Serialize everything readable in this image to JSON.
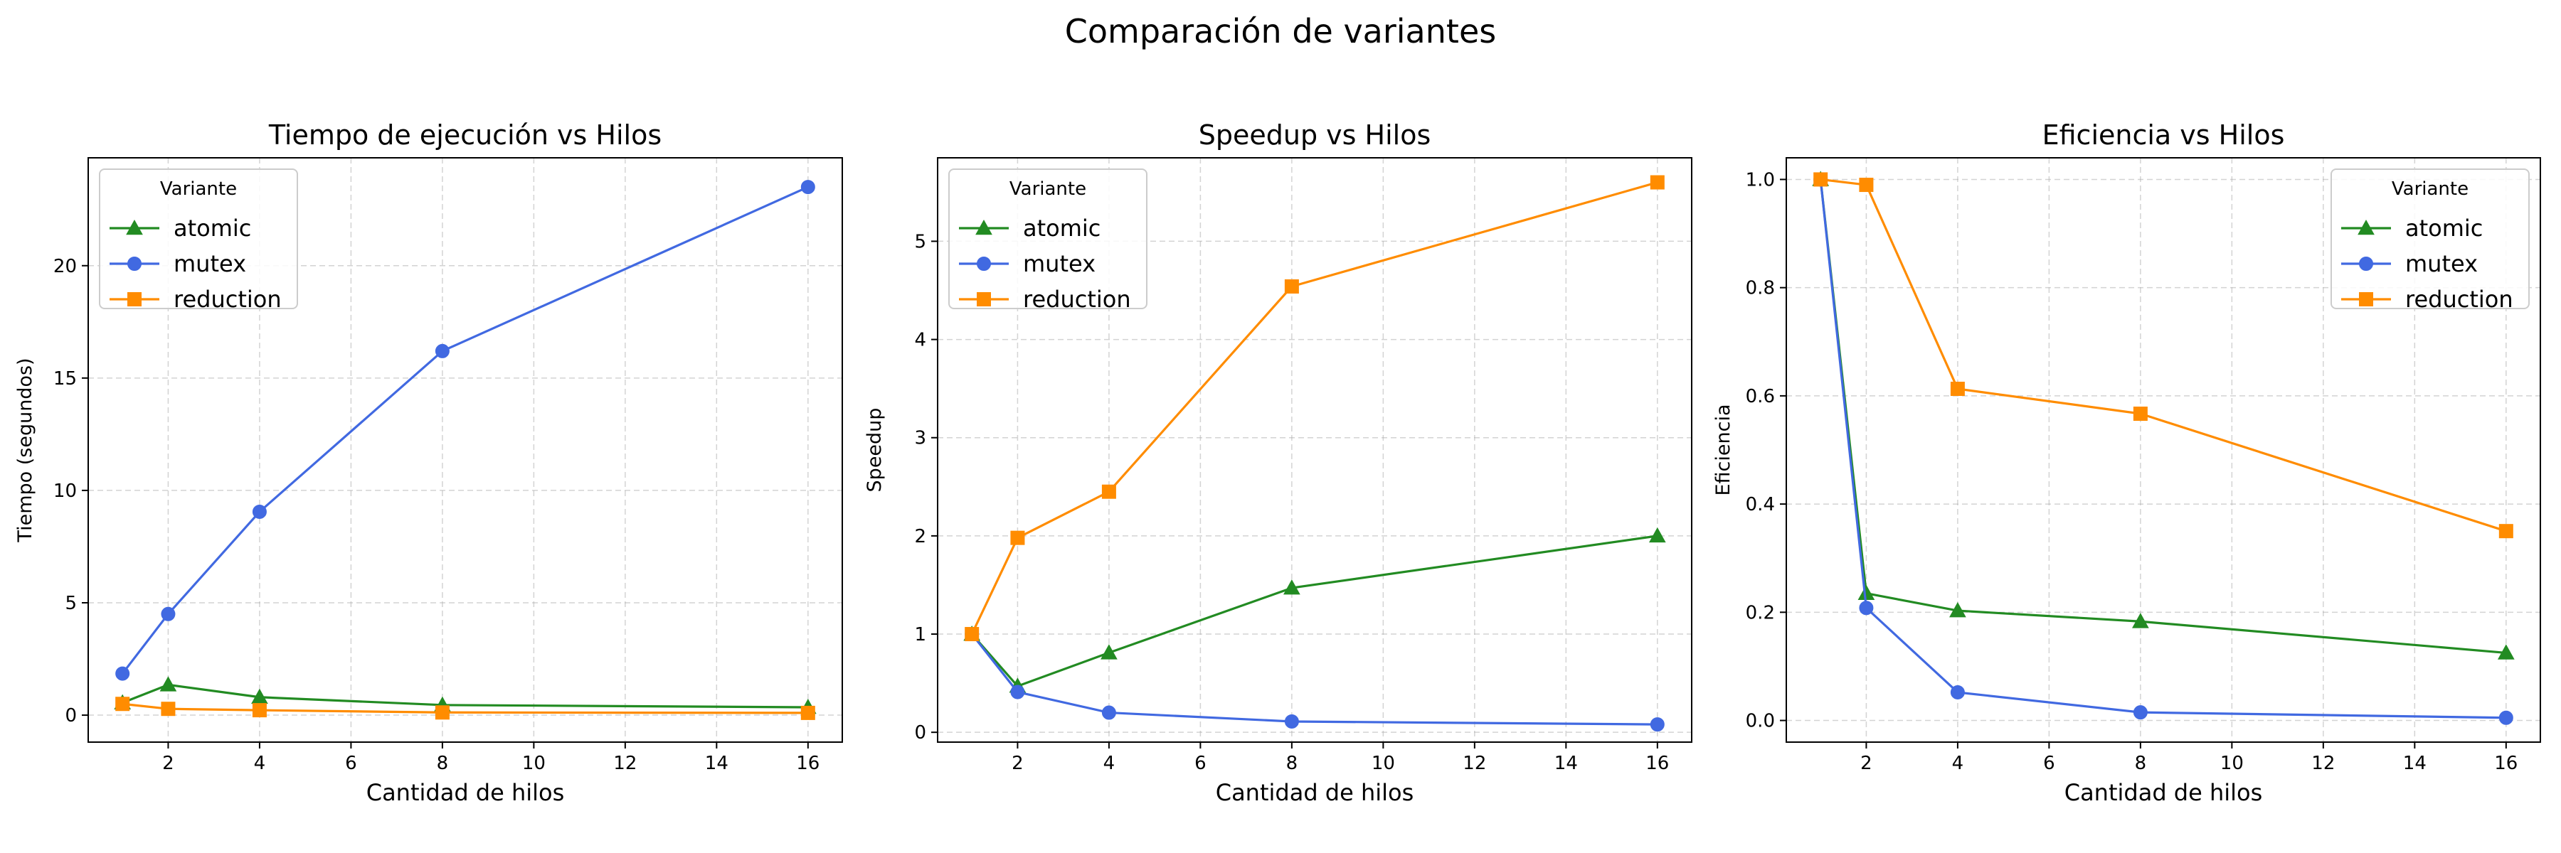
{
  "suptitle": "Comparación de variantes",
  "colors": {
    "atomic": "#228B22",
    "mutex": "#4169E1",
    "reduction": "#FF8C00",
    "grid": "#b0b0b0",
    "axis": "#000000"
  },
  "chart_data": [
    {
      "type": "line",
      "title": "Tiempo de ejecución vs Hilos",
      "xlabel": "Cantidad de hilos",
      "ylabel": "Tiempo (segundos)",
      "x": [
        1,
        2,
        4,
        8,
        16
      ],
      "xlim": [
        0.25,
        16.75
      ],
      "ylim": [
        -1.2,
        24.8
      ],
      "xticks": [
        2,
        4,
        6,
        8,
        10,
        12,
        14,
        16
      ],
      "yticks": [
        0,
        5,
        10,
        15,
        20
      ],
      "grid": true,
      "legend": {
        "title": "Variante",
        "placement": "top-left"
      },
      "series": [
        {
          "name": "atomic",
          "marker": "triangle",
          "color": "#228B22",
          "values": [
            0.55,
            1.35,
            0.8,
            0.45,
            0.35
          ]
        },
        {
          "name": "mutex",
          "marker": "circle",
          "color": "#4169E1",
          "values": [
            1.85,
            4.5,
            9.05,
            16.2,
            23.5
          ]
        },
        {
          "name": "reduction",
          "marker": "square",
          "color": "#FF8C00",
          "values": [
            0.5,
            0.28,
            0.22,
            0.12,
            0.1
          ]
        }
      ]
    },
    {
      "type": "line",
      "title": "Speedup vs Hilos",
      "xlabel": "Cantidad de hilos",
      "ylabel": "Speedup",
      "x": [
        1,
        2,
        4,
        8,
        16
      ],
      "xlim": [
        0.25,
        16.75
      ],
      "ylim": [
        -0.1,
        5.85
      ],
      "xticks": [
        2,
        4,
        6,
        8,
        10,
        12,
        14,
        16
      ],
      "yticks": [
        0,
        1,
        2,
        3,
        4,
        5
      ],
      "grid": true,
      "legend": {
        "title": "Variante",
        "placement": "top-left"
      },
      "series": [
        {
          "name": "atomic",
          "marker": "triangle",
          "color": "#228B22",
          "values": [
            1.0,
            0.47,
            0.81,
            1.47,
            2.0
          ]
        },
        {
          "name": "mutex",
          "marker": "circle",
          "color": "#4169E1",
          "values": [
            1.0,
            0.41,
            0.2,
            0.11,
            0.08
          ]
        },
        {
          "name": "reduction",
          "marker": "square",
          "color": "#FF8C00",
          "values": [
            1.0,
            1.98,
            2.45,
            4.54,
            5.6
          ]
        }
      ]
    },
    {
      "type": "line",
      "title": "Eficiencia vs Hilos",
      "xlabel": "Cantidad de hilos",
      "ylabel": "Eficiencia",
      "x": [
        1,
        2,
        4,
        8,
        16
      ],
      "xlim": [
        0.25,
        16.75
      ],
      "ylim": [
        -0.04,
        1.04
      ],
      "xticks": [
        2,
        4,
        6,
        8,
        10,
        12,
        14,
        16
      ],
      "yticks": [
        0.0,
        0.2,
        0.4,
        0.6,
        0.8,
        1.0
      ],
      "ytick_labels": [
        "0.0",
        "0.2",
        "0.4",
        "0.6",
        "0.8",
        "1.0"
      ],
      "grid": true,
      "legend": {
        "title": "Variante",
        "placement": "top-right"
      },
      "series": [
        {
          "name": "atomic",
          "marker": "triangle",
          "color": "#228B22",
          "values": [
            1.0,
            0.235,
            0.203,
            0.183,
            0.125
          ]
        },
        {
          "name": "mutex",
          "marker": "circle",
          "color": "#4169E1",
          "values": [
            1.0,
            0.208,
            0.052,
            0.015,
            0.005
          ]
        },
        {
          "name": "reduction",
          "marker": "square",
          "color": "#FF8C00",
          "values": [
            1.0,
            0.99,
            0.613,
            0.567,
            0.35
          ]
        }
      ]
    }
  ]
}
